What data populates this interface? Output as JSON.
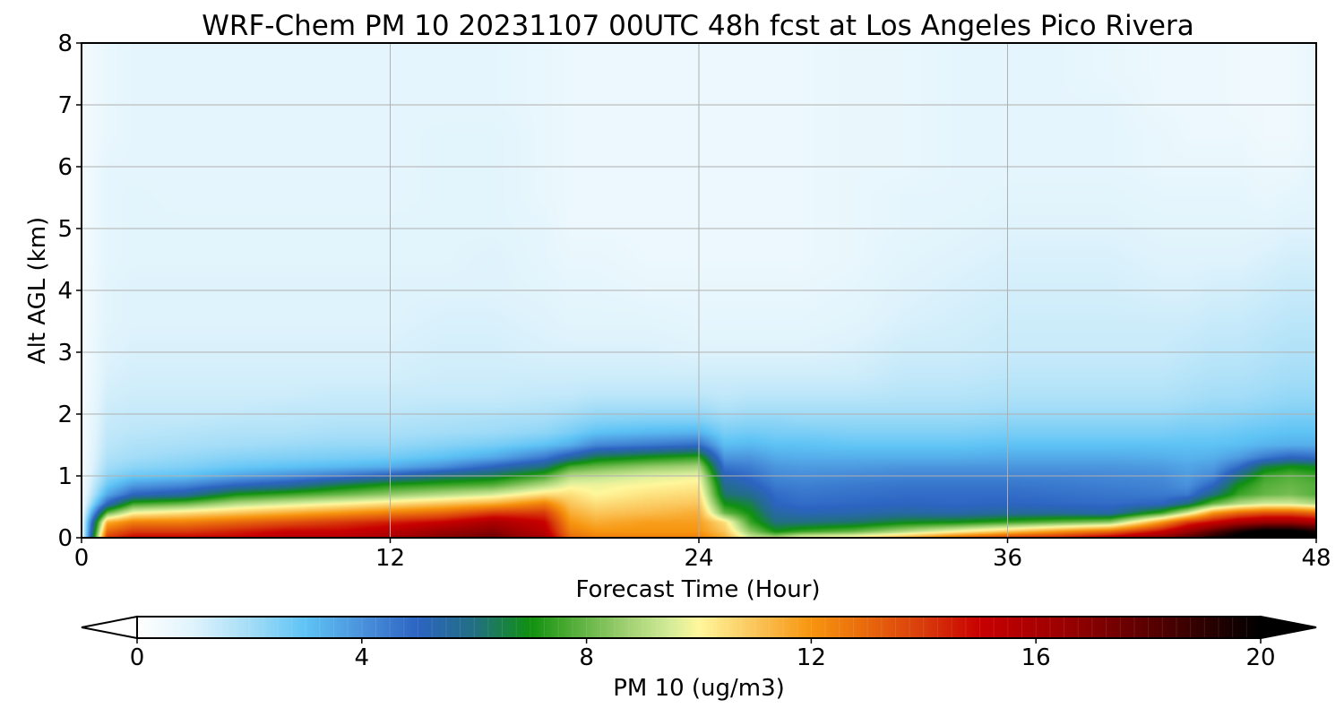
{
  "chart_data": {
    "type": "heatmap",
    "title": "WRF-Chem PM 10  20231107 00UTC 48h fcst at Los Angeles Pico Rivera",
    "xlabel": "Forecast Time (Hour)",
    "ylabel": "Alt AGL (km)",
    "xlim": [
      0,
      48
    ],
    "ylim": [
      0,
      8
    ],
    "x_ticks": [
      "0",
      "12",
      "24",
      "36",
      "48"
    ],
    "y_ticks": [
      "0",
      "1",
      "2",
      "3",
      "4",
      "5",
      "6",
      "7",
      "8"
    ],
    "grid": true,
    "colorbar": {
      "label": "PM 10  (ug/m3)",
      "range": [
        0,
        20
      ],
      "extend": "both",
      "ticks": [
        "0",
        "4",
        "8",
        "12",
        "16",
        "20"
      ],
      "stops": [
        {
          "v": 0,
          "c": "#ffffff"
        },
        {
          "v": 1,
          "c": "#dff3fc"
        },
        {
          "v": 2,
          "c": "#a4ddf7"
        },
        {
          "v": 3,
          "c": "#5ec3f5"
        },
        {
          "v": 4,
          "c": "#4a92dc"
        },
        {
          "v": 5,
          "c": "#2c64c2"
        },
        {
          "v": 6,
          "c": "#226f82"
        },
        {
          "v": 7,
          "c": "#109010"
        },
        {
          "v": 7.6,
          "c": "#45a82e"
        },
        {
          "v": 8.6,
          "c": "#98cc6c"
        },
        {
          "v": 9.5,
          "c": "#d4ec98"
        },
        {
          "v": 10,
          "c": "#fff79c"
        },
        {
          "v": 11,
          "c": "#fbc55a"
        },
        {
          "v": 12,
          "c": "#f7950e"
        },
        {
          "v": 13,
          "c": "#e8680c"
        },
        {
          "v": 14,
          "c": "#d93b0b"
        },
        {
          "v": 15,
          "c": "#c80000"
        },
        {
          "v": 16.5,
          "c": "#9b0000"
        },
        {
          "v": 18,
          "c": "#5a0000"
        },
        {
          "v": 20,
          "c": "#000000"
        }
      ]
    },
    "hours": [
      0,
      1,
      2,
      4,
      6,
      8,
      10,
      12,
      14,
      16,
      18,
      19,
      20,
      22,
      24,
      25,
      26,
      27,
      28,
      30,
      32,
      34,
      36,
      38,
      40,
      42,
      43,
      44,
      45,
      46,
      47,
      48
    ],
    "levels_km": [
      0,
      0.1,
      0.25,
      0.4,
      0.55,
      0.7,
      0.85,
      1.0,
      1.15,
      1.3,
      1.5,
      1.7,
      1.9,
      2.1,
      2.3,
      2.6,
      3.0,
      3.5,
      4.0,
      4.5,
      5.0,
      5.5,
      6.0,
      6.5,
      7.0,
      7.5,
      8.0
    ],
    "pm10": [
      [
        0.3,
        0.3,
        0.3,
        0.3,
        0.3,
        0.3,
        0.3,
        0.3,
        0.3,
        0.3,
        0.3,
        0.3,
        0.3,
        0.3,
        0.3,
        0.3,
        0.3,
        0.3,
        0.3,
        0.3,
        0.3,
        0.3,
        0.3,
        0.3,
        0.3,
        0.3,
        0.3
      ],
      [
        14.0,
        13.0,
        11.5,
        8.0,
        5.0,
        3.5,
        2.8,
        2.3,
        2.0,
        1.8,
        1.6,
        1.5,
        1.4,
        1.3,
        1.2,
        1.1,
        1.0,
        0.9,
        0.9,
        0.8,
        0.8,
        0.8,
        0.8,
        0.7,
        0.7,
        0.7,
        0.7
      ],
      [
        15.0,
        14.0,
        12.5,
        10.0,
        7.5,
        5.0,
        3.8,
        2.8,
        2.3,
        2.0,
        1.8,
        1.6,
        1.5,
        1.4,
        1.3,
        1.2,
        1.1,
        1.0,
        1.0,
        0.9,
        0.9,
        0.9,
        0.8,
        0.8,
        0.8,
        0.8,
        0.8
      ],
      [
        15.0,
        14.0,
        12.5,
        10.5,
        8.0,
        5.5,
        4.2,
        3.0,
        2.5,
        2.2,
        1.9,
        1.7,
        1.5,
        1.4,
        1.3,
        1.2,
        1.1,
        1.0,
        1.0,
        0.9,
        0.9,
        0.8,
        0.8,
        0.8,
        0.8,
        0.8,
        0.8
      ],
      [
        15.0,
        14.5,
        13.0,
        11.0,
        9.0,
        7.0,
        5.0,
        3.6,
        2.8,
        2.4,
        2.0,
        1.8,
        1.6,
        1.4,
        1.3,
        1.2,
        1.1,
        1.0,
        1.0,
        0.9,
        0.9,
        0.8,
        0.8,
        0.8,
        0.8,
        0.8,
        0.8
      ],
      [
        15.5,
        15.0,
        13.5,
        11.5,
        9.5,
        7.5,
        5.5,
        4.0,
        3.0,
        2.5,
        2.1,
        1.8,
        1.6,
        1.5,
        1.3,
        1.2,
        1.1,
        1.0,
        1.0,
        0.9,
        0.9,
        0.8,
        0.8,
        0.8,
        0.8,
        0.8,
        0.8
      ],
      [
        15.5,
        15.0,
        14.0,
        12.0,
        10.0,
        8.0,
        6.5,
        4.5,
        3.2,
        2.6,
        2.2,
        1.9,
        1.7,
        1.5,
        1.4,
        1.2,
        1.1,
        1.0,
        1.0,
        0.9,
        0.9,
        0.8,
        0.8,
        0.8,
        0.8,
        0.8,
        0.8
      ],
      [
        16.0,
        15.5,
        14.5,
        12.5,
        10.5,
        8.5,
        7.2,
        5.2,
        3.4,
        2.7,
        2.2,
        1.9,
        1.7,
        1.5,
        1.4,
        1.2,
        1.1,
        1.0,
        1.0,
        0.9,
        0.9,
        0.8,
        0.8,
        0.8,
        0.8,
        0.8,
        0.8
      ],
      [
        17.0,
        16.5,
        15.0,
        13.0,
        11.0,
        9.0,
        7.5,
        6.0,
        4.0,
        3.0,
        2.4,
        2.0,
        1.8,
        1.6,
        1.4,
        1.3,
        1.2,
        1.1,
        1.0,
        0.9,
        0.9,
        0.9,
        0.9,
        0.9,
        0.8,
        0.8,
        0.8
      ],
      [
        17.5,
        17.0,
        16.0,
        14.0,
        11.5,
        9.5,
        7.8,
        6.5,
        5.0,
        3.5,
        2.6,
        2.1,
        1.9,
        1.6,
        1.4,
        1.3,
        1.2,
        1.1,
        1.0,
        1.0,
        0.9,
        0.9,
        0.9,
        0.9,
        0.8,
        0.8,
        0.8
      ],
      [
        16.0,
        15.5,
        15.0,
        14.0,
        12.5,
        10.5,
        9.0,
        7.6,
        6.0,
        4.5,
        3.0,
        2.3,
        2.0,
        1.7,
        1.5,
        1.3,
        1.1,
        1.0,
        0.9,
        0.8,
        0.8,
        0.7,
        0.7,
        0.7,
        0.7,
        0.7,
        0.7
      ],
      [
        13.0,
        12.5,
        12.0,
        11.5,
        11.0,
        10.5,
        9.8,
        9.0,
        7.6,
        5.5,
        3.4,
        2.6,
        2.2,
        1.8,
        1.5,
        1.3,
        1.1,
        0.9,
        0.8,
        0.7,
        0.6,
        0.6,
        0.6,
        0.6,
        0.6,
        0.6,
        0.6
      ],
      [
        12.5,
        12.0,
        11.5,
        11.0,
        10.5,
        10.0,
        9.8,
        9.2,
        8.0,
        6.5,
        4.2,
        3.0,
        2.4,
        2.0,
        1.6,
        1.3,
        1.1,
        0.9,
        0.8,
        0.7,
        0.6,
        0.6,
        0.6,
        0.6,
        0.6,
        0.6,
        0.6
      ],
      [
        12.5,
        12.0,
        11.8,
        11.2,
        10.8,
        10.4,
        10.0,
        9.6,
        8.5,
        7.0,
        4.5,
        3.2,
        2.5,
        2.0,
        1.6,
        1.3,
        1.1,
        0.9,
        0.7,
        0.6,
        0.6,
        0.6,
        0.6,
        0.6,
        0.6,
        0.6,
        0.6
      ],
      [
        12.5,
        12.0,
        11.8,
        11.5,
        11.0,
        10.6,
        10.2,
        9.8,
        8.8,
        7.4,
        4.8,
        3.3,
        2.5,
        2.0,
        1.6,
        1.3,
        1.0,
        0.8,
        0.7,
        0.6,
        0.6,
        0.6,
        0.6,
        0.6,
        0.6,
        0.6,
        0.6
      ],
      [
        11.5,
        11.0,
        10.5,
        8.0,
        7.0,
        6.2,
        5.8,
        5.2,
        4.6,
        3.9,
        3.1,
        2.6,
        2.2,
        1.8,
        1.5,
        1.3,
        1.0,
        0.8,
        0.7,
        0.6,
        0.6,
        0.6,
        0.6,
        0.6,
        0.6,
        0.6,
        0.6
      ],
      [
        9.5,
        8.5,
        7.5,
        7.0,
        6.5,
        5.8,
        5.2,
        4.8,
        4.4,
        3.9,
        3.2,
        2.7,
        2.3,
        1.9,
        1.6,
        1.3,
        1.0,
        0.8,
        0.7,
        0.6,
        0.6,
        0.6,
        0.6,
        0.6,
        0.6,
        0.6,
        0.6
      ],
      [
        9.0,
        7.0,
        6.0,
        5.5,
        5.0,
        4.8,
        4.5,
        4.2,
        3.9,
        3.5,
        3.0,
        2.6,
        2.3,
        1.9,
        1.6,
        1.3,
        1.0,
        0.8,
        0.7,
        0.6,
        0.6,
        0.6,
        0.6,
        0.6,
        0.6,
        0.6,
        0.6
      ],
      [
        10.0,
        7.5,
        6.0,
        5.2,
        4.8,
        4.6,
        4.4,
        4.1,
        3.8,
        3.4,
        3.0,
        2.6,
        2.2,
        1.9,
        1.6,
        1.3,
        1.0,
        0.8,
        0.7,
        0.6,
        0.6,
        0.6,
        0.6,
        0.6,
        0.6,
        0.6,
        0.6
      ],
      [
        10.5,
        8.0,
        6.2,
        5.3,
        4.9,
        4.7,
        4.5,
        4.2,
        3.8,
        3.4,
        2.9,
        2.5,
        2.2,
        1.9,
        1.6,
        1.3,
        1.1,
        0.9,
        0.8,
        0.7,
        0.7,
        0.7,
        0.7,
        0.7,
        0.7,
        0.7,
        0.7
      ],
      [
        11.5,
        9.0,
        6.8,
        5.5,
        5.0,
        4.8,
        4.6,
        4.3,
        3.9,
        3.4,
        2.9,
        2.5,
        2.2,
        1.9,
        1.7,
        1.5,
        1.3,
        1.1,
        1.0,
        0.9,
        0.8,
        0.8,
        0.7,
        0.7,
        0.7,
        0.7,
        0.7
      ],
      [
        13.0,
        10.0,
        7.0,
        5.4,
        4.9,
        4.8,
        4.6,
        4.3,
        3.9,
        3.4,
        2.9,
        2.5,
        2.2,
        1.9,
        1.7,
        1.5,
        1.3,
        1.2,
        1.1,
        1.0,
        0.9,
        0.8,
        0.8,
        0.8,
        0.8,
        0.8,
        0.8
      ],
      [
        14.0,
        11.0,
        7.5,
        5.6,
        5.0,
        4.8,
        4.6,
        4.3,
        3.9,
        3.5,
        3.0,
        2.6,
        2.3,
        2.0,
        1.8,
        1.6,
        1.4,
        1.3,
        1.2,
        1.1,
        1.0,
        0.9,
        0.8,
        0.8,
        0.8,
        0.8,
        0.8
      ],
      [
        14.5,
        12.0,
        8.0,
        5.6,
        4.9,
        4.7,
        4.5,
        4.3,
        3.9,
        3.5,
        3.0,
        2.6,
        2.3,
        2.0,
        1.8,
        1.6,
        1.4,
        1.3,
        1.2,
        1.1,
        1.0,
        0.9,
        0.8,
        0.8,
        0.8,
        0.8,
        0.8
      ],
      [
        15.5,
        13.0,
        8.5,
        5.4,
        4.8,
        4.6,
        4.4,
        4.2,
        3.9,
        3.5,
        3.0,
        2.6,
        2.3,
        2.0,
        1.8,
        1.6,
        1.4,
        1.3,
        1.2,
        1.1,
        1.0,
        0.9,
        0.8,
        0.8,
        0.8,
        0.7,
        0.7
      ],
      [
        17.0,
        15.0,
        12.0,
        7.5,
        5.0,
        4.5,
        4.3,
        4.1,
        3.8,
        3.4,
        3.0,
        2.6,
        2.3,
        2.0,
        1.8,
        1.6,
        1.4,
        1.3,
        1.1,
        1.0,
        0.9,
        0.8,
        0.7,
        0.7,
        0.6,
        0.6,
        0.6
      ],
      [
        18.0,
        16.5,
        14.0,
        9.5,
        6.0,
        4.5,
        4.0,
        3.8,
        3.6,
        3.3,
        3.0,
        2.7,
        2.4,
        2.1,
        1.9,
        1.7,
        1.5,
        1.3,
        1.1,
        1.0,
        0.9,
        0.8,
        0.7,
        0.6,
        0.6,
        0.6,
        0.6
      ],
      [
        19.5,
        18.0,
        15.0,
        12.0,
        8.0,
        6.0,
        5.0,
        4.2,
        3.8,
        3.4,
        3.0,
        2.7,
        2.4,
        2.2,
        2.0,
        1.8,
        1.6,
        1.4,
        1.2,
        1.0,
        0.9,
        0.8,
        0.7,
        0.6,
        0.6,
        0.6,
        0.6
      ],
      [
        20.5,
        19.5,
        16.0,
        13.0,
        9.0,
        7.5,
        7.0,
        6.0,
        4.8,
        3.8,
        3.1,
        2.8,
        2.5,
        2.2,
        2.0,
        1.8,
        1.6,
        1.4,
        1.2,
        1.0,
        0.9,
        0.8,
        0.7,
        0.6,
        0.5,
        0.5,
        0.5
      ],
      [
        21.0,
        20.5,
        16.5,
        13.5,
        9.5,
        8.0,
        7.8,
        7.5,
        6.5,
        4.5,
        3.3,
        2.9,
        2.6,
        2.3,
        2.1,
        1.9,
        1.7,
        1.5,
        1.3,
        1.1,
        0.9,
        0.7,
        0.6,
        0.5,
        0.5,
        0.5,
        0.5
      ],
      [
        21.0,
        20.5,
        16.5,
        13.5,
        9.5,
        8.2,
        8.0,
        7.8,
        7.0,
        5.0,
        3.4,
        3.0,
        2.7,
        2.4,
        2.2,
        2.0,
        1.8,
        1.6,
        1.4,
        1.2,
        1.0,
        0.8,
        0.6,
        0.5,
        0.5,
        0.5,
        0.5
      ],
      [
        20.0,
        19.5,
        16.0,
        13.0,
        9.0,
        7.8,
        7.8,
        7.5,
        6.8,
        4.8,
        3.4,
        3.0,
        2.7,
        2.4,
        2.2,
        2.0,
        1.8,
        1.6,
        1.4,
        1.2,
        1.0,
        0.9,
        0.8,
        0.7,
        0.7,
        0.7,
        0.7
      ]
    ]
  }
}
